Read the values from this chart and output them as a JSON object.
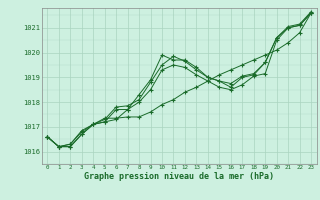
{
  "xlabel": "Graphe pression niveau de la mer (hPa)",
  "x_ticks": [
    0,
    1,
    2,
    3,
    4,
    5,
    6,
    7,
    8,
    9,
    10,
    11,
    12,
    13,
    14,
    15,
    16,
    17,
    18,
    19,
    20,
    21,
    22,
    23
  ],
  "ylim": [
    1015.5,
    1021.8
  ],
  "yticks": [
    1016,
    1017,
    1018,
    1019,
    1020,
    1021
  ],
  "bg_color": "#cdf0e0",
  "grid_color": "#aad4c0",
  "line_color": "#1a6b2a",
  "line1": [
    1016.6,
    1016.2,
    1016.2,
    1016.7,
    1017.1,
    1017.2,
    1017.3,
    1017.7,
    1018.3,
    1018.9,
    1019.9,
    1019.7,
    1019.7,
    1019.4,
    1019.0,
    1018.85,
    1018.6,
    1019.0,
    1019.1,
    1019.6,
    1020.6,
    1021.0,
    1021.1,
    1021.6
  ],
  "line2": [
    1016.6,
    1016.2,
    1016.2,
    1016.7,
    1017.1,
    1017.2,
    1017.7,
    1017.7,
    1018.0,
    1018.5,
    1019.3,
    1019.5,
    1019.4,
    1019.1,
    1018.85,
    1018.6,
    1018.5,
    1018.7,
    1019.05,
    1019.15,
    1020.5,
    1021.0,
    1021.1,
    1021.6
  ],
  "line3": [
    1016.6,
    1016.2,
    1016.3,
    1016.8,
    1017.1,
    1017.3,
    1017.8,
    1017.85,
    1018.1,
    1018.8,
    1019.5,
    1019.85,
    1019.65,
    1019.3,
    1019.0,
    1018.85,
    1018.75,
    1019.05,
    1019.15,
    1019.6,
    1020.6,
    1021.05,
    1021.15,
    1021.65
  ],
  "line4": [
    1016.6,
    1016.2,
    1016.3,
    1016.85,
    1017.1,
    1017.35,
    1017.35,
    1017.4,
    1017.4,
    1017.6,
    1017.9,
    1018.1,
    1018.4,
    1018.6,
    1018.85,
    1019.1,
    1019.3,
    1019.5,
    1019.7,
    1019.9,
    1020.1,
    1020.4,
    1020.8,
    1021.6
  ]
}
